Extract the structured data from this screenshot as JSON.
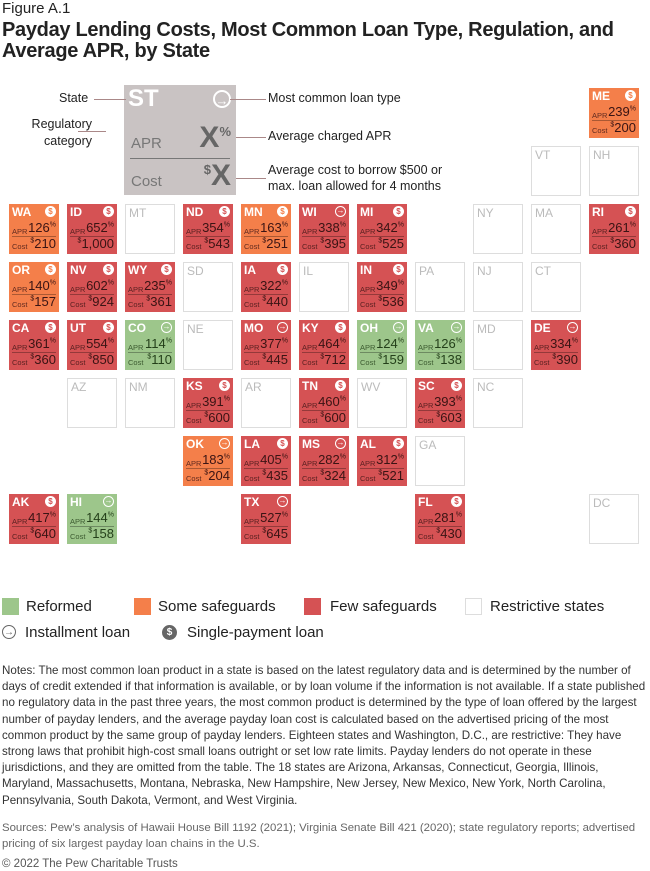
{
  "figure_label": "Figure A.1",
  "title": "Payday Lending Costs, Most Common Loan Type, Regulation, and Average APR, by State",
  "colors": {
    "reformed": "#9dc68b",
    "some": "#f47f4a",
    "few": "#d55254",
    "restrictive": "#ffffff"
  },
  "key": {
    "state": "ST",
    "apr_label": "APR",
    "apr_value": "X",
    "apr_unit": "%",
    "cost_label": "Cost",
    "cost_prefix": "$",
    "cost_value": "X",
    "callout_state": "State",
    "callout_regulatory": "Regulatory category",
    "callout_loan": "Most common loan type",
    "callout_apr": "Average charged APR",
    "callout_cost": "Average cost to borrow $500 or max. loan allowed for 4 months"
  },
  "legend": {
    "reformed": "Reformed",
    "some": "Some safeguards",
    "few": "Few safeguards",
    "restrictive": "Restrictive states",
    "installment": "Installment loan",
    "single": "Single-payment loan"
  },
  "chart_data": {
    "type": "table",
    "fields": [
      "state",
      "category",
      "loan_type",
      "apr_percent",
      "cost_usd"
    ],
    "states": [
      {
        "state": "ME",
        "category": "some",
        "loan": "single",
        "apr": 239,
        "cost": "200"
      },
      {
        "state": "VT",
        "category": "restrictive"
      },
      {
        "state": "NH",
        "category": "restrictive"
      },
      {
        "state": "WA",
        "category": "some",
        "loan": "single",
        "apr": 126,
        "cost": "210"
      },
      {
        "state": "ID",
        "category": "few",
        "loan": "single",
        "apr": 652,
        "cost": "1,000"
      },
      {
        "state": "MT",
        "category": "restrictive"
      },
      {
        "state": "ND",
        "category": "few",
        "loan": "single",
        "apr": 354,
        "cost": "543"
      },
      {
        "state": "MN",
        "category": "some",
        "loan": "single",
        "apr": 163,
        "cost": "251"
      },
      {
        "state": "WI",
        "category": "few",
        "loan": "installment",
        "apr": 338,
        "cost": "395"
      },
      {
        "state": "MI",
        "category": "few",
        "loan": "single",
        "apr": 342,
        "cost": "525"
      },
      {
        "state": "NY",
        "category": "restrictive"
      },
      {
        "state": "MA",
        "category": "restrictive"
      },
      {
        "state": "RI",
        "category": "few",
        "loan": "single",
        "apr": 261,
        "cost": "360"
      },
      {
        "state": "OR",
        "category": "some",
        "loan": "single",
        "apr": 140,
        "cost": "157"
      },
      {
        "state": "NV",
        "category": "few",
        "loan": "single",
        "apr": 602,
        "cost": "924"
      },
      {
        "state": "WY",
        "category": "few",
        "loan": "single",
        "apr": 235,
        "cost": "361"
      },
      {
        "state": "SD",
        "category": "restrictive"
      },
      {
        "state": "IA",
        "category": "few",
        "loan": "single",
        "apr": 322,
        "cost": "440"
      },
      {
        "state": "IL",
        "category": "restrictive"
      },
      {
        "state": "IN",
        "category": "few",
        "loan": "single",
        "apr": 349,
        "cost": "536"
      },
      {
        "state": "PA",
        "category": "restrictive"
      },
      {
        "state": "NJ",
        "category": "restrictive"
      },
      {
        "state": "CT",
        "category": "restrictive"
      },
      {
        "state": "CA",
        "category": "few",
        "loan": "single",
        "apr": 361,
        "cost": "360"
      },
      {
        "state": "UT",
        "category": "few",
        "loan": "single",
        "apr": 554,
        "cost": "850"
      },
      {
        "state": "CO",
        "category": "reformed",
        "loan": "installment",
        "apr": 114,
        "cost": "110"
      },
      {
        "state": "NE",
        "category": "restrictive"
      },
      {
        "state": "MO",
        "category": "few",
        "loan": "installment",
        "apr": 377,
        "cost": "445"
      },
      {
        "state": "KY",
        "category": "few",
        "loan": "single",
        "apr": 464,
        "cost": "712"
      },
      {
        "state": "OH",
        "category": "reformed",
        "loan": "installment",
        "apr": 124,
        "cost": "159"
      },
      {
        "state": "VA",
        "category": "reformed",
        "loan": "installment",
        "apr": 126,
        "cost": "138"
      },
      {
        "state": "MD",
        "category": "restrictive"
      },
      {
        "state": "DE",
        "category": "few",
        "loan": "installment",
        "apr": 334,
        "cost": "390"
      },
      {
        "state": "AZ",
        "category": "restrictive"
      },
      {
        "state": "NM",
        "category": "restrictive"
      },
      {
        "state": "KS",
        "category": "few",
        "loan": "single",
        "apr": 391,
        "cost": "600"
      },
      {
        "state": "AR",
        "category": "restrictive"
      },
      {
        "state": "TN",
        "category": "few",
        "loan": "single",
        "apr": 460,
        "cost": "600"
      },
      {
        "state": "WV",
        "category": "restrictive"
      },
      {
        "state": "SC",
        "category": "few",
        "loan": "single",
        "apr": 393,
        "cost": "603"
      },
      {
        "state": "NC",
        "category": "restrictive"
      },
      {
        "state": "OK",
        "category": "some",
        "loan": "installment",
        "apr": 183,
        "cost": "204"
      },
      {
        "state": "LA",
        "category": "few",
        "loan": "single",
        "apr": 405,
        "cost": "435"
      },
      {
        "state": "MS",
        "category": "few",
        "loan": "installment",
        "apr": 282,
        "cost": "324"
      },
      {
        "state": "AL",
        "category": "few",
        "loan": "single",
        "apr": 312,
        "cost": "521"
      },
      {
        "state": "GA",
        "category": "restrictive"
      },
      {
        "state": "AK",
        "category": "few",
        "loan": "single",
        "apr": 417,
        "cost": "640"
      },
      {
        "state": "HI",
        "category": "reformed",
        "loan": "installment",
        "apr": 144,
        "cost": "158"
      },
      {
        "state": "TX",
        "category": "few",
        "loan": "installment",
        "apr": 527,
        "cost": "645"
      },
      {
        "state": "FL",
        "category": "few",
        "loan": "single",
        "apr": 281,
        "cost": "430"
      },
      {
        "state": "DC",
        "category": "restrictive"
      }
    ],
    "labels": {
      "apr": "APR",
      "cost": "Cost",
      "percent": "%",
      "dollar": "$"
    }
  },
  "notes": "Notes: The most common loan product in a state is based on the latest regulatory data and is determined by the number of days of credit extended if that information is available, or by loan volume if the information is not available. If a state published no regulatory data in the past three years, the most common product is determined by the type of loan offered by the largest number of payday lenders, and the average payday loan cost is calculated based on the advertised pricing of the most common product by the same group of payday lenders. Eighteen states and Washington, D.C., are restrictive: They have strong laws that prohibit high-cost small loans outright or set low rate limits. Payday lenders do not operate in these jurisdictions, and they are omitted from the table. The 18 states are Arizona, Arkansas, Connecticut, Georgia, Illinois, Maryland, Massachusetts, Montana, Nebraska, New Hampshire, New Jersey, New Mexico, New York, North Carolina, Pennsylvania, South Dakota, Vermont, and West Virginia.",
  "sources": "Sources: Pew’s analysis of Hawaii House Bill 1192 (2021); Virginia Senate Bill 421 (2020); state regulatory reports; advertised pricing of six largest payday loan chains in the U.S.",
  "copyright": "© 2022 The Pew Charitable Trusts"
}
